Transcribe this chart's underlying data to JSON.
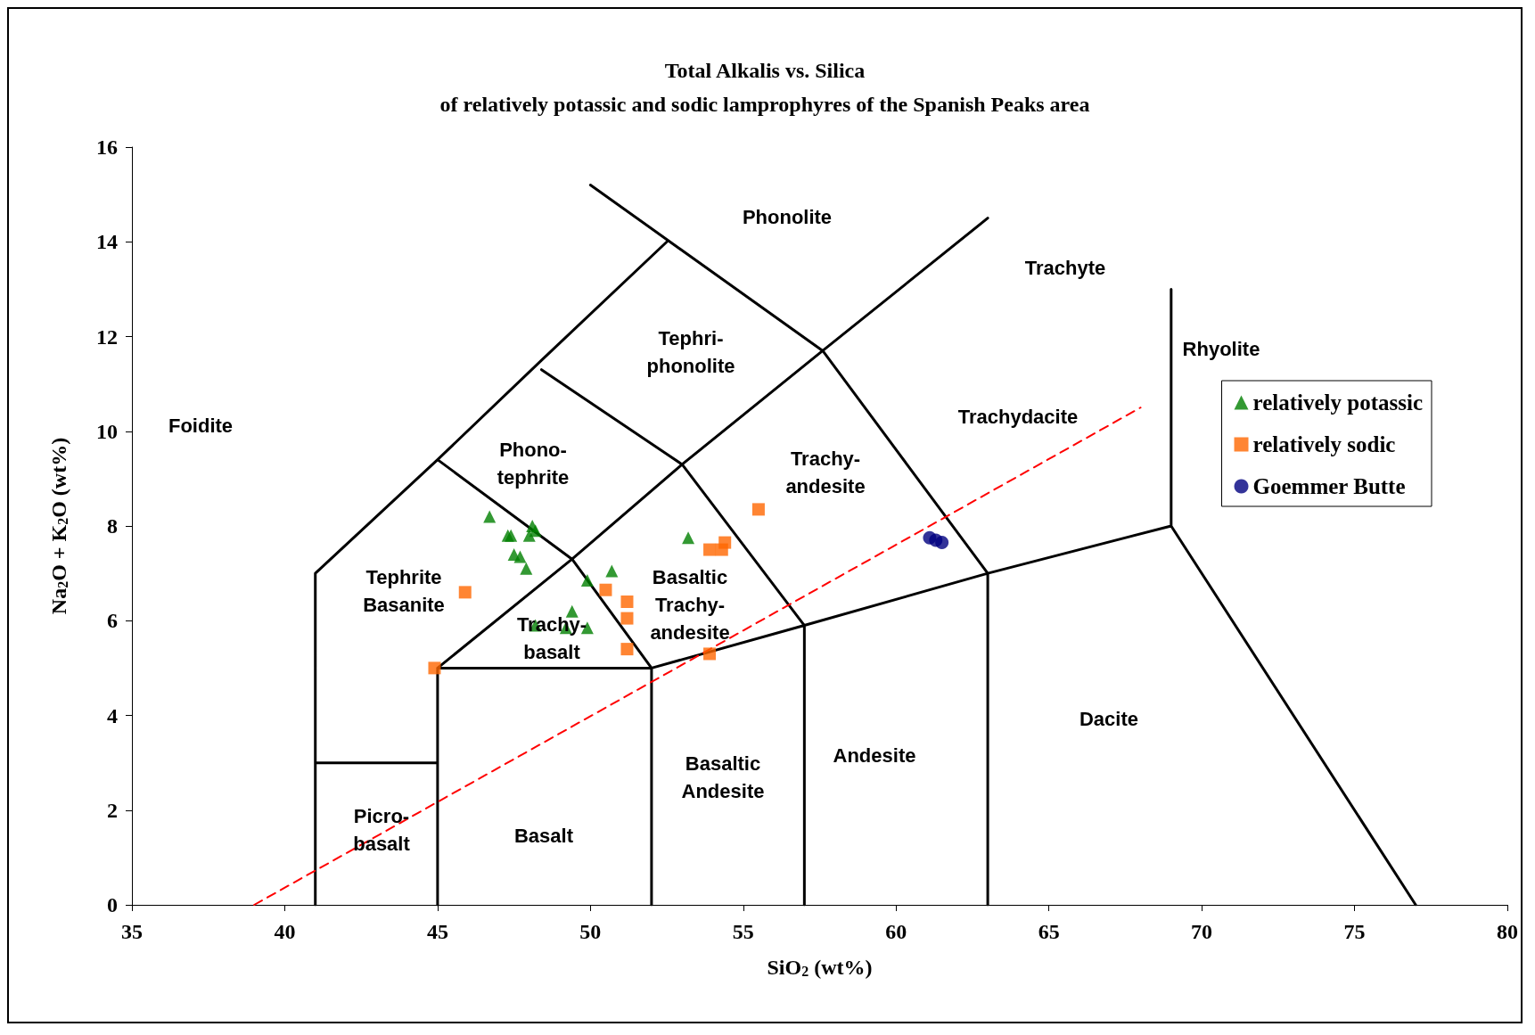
{
  "chart_data": {
    "type": "scatter",
    "title": "Total Alkalis vs. Silica",
    "subtitle": "of relatively potassic and sodic lamprophyres of the Spanish Peaks area",
    "xlabel": "SiO$_{2}$ (wt%)",
    "ylabel": "Na$_{2}$O + K$_{2}$O (wt%)",
    "xlim": [
      35,
      80
    ],
    "xticks": [
      35,
      40,
      45,
      50,
      55,
      60,
      65,
      70,
      75,
      80
    ],
    "ylim": [
      0,
      16
    ],
    "yticks": [
      0,
      2,
      4,
      6,
      8,
      10,
      12,
      14,
      16
    ],
    "grid": false,
    "legend": "right",
    "series": [
      {
        "type": "line",
        "color": "#000000",
        "marker": "none",
        "line_style": "solid",
        "x": [
          41,
          41,
          45,
          48.4,
          52.5,
          null,
          41,
          45,
          null,
          45,
          45,
          52,
          57,
          63,
          69,
          77,
          null,
          52,
          52,
          null,
          57,
          57,
          null,
          63,
          63,
          null,
          45,
          49.4,
          53,
          57.6,
          63,
          null,
          52,
          49.4,
          45,
          null,
          53,
          48.4,
          null,
          57,
          53,
          null,
          63,
          57.6,
          50,
          null,
          69,
          69
        ],
        "values": [
          0,
          7,
          9.4,
          11.5,
          14,
          null,
          3,
          3,
          null,
          0,
          5,
          5,
          5.9,
          7,
          8,
          0,
          null,
          0,
          5,
          null,
          0,
          5.9,
          null,
          0,
          7,
          null,
          5,
          7.3,
          9.3,
          11.7,
          14.5,
          null,
          5,
          7.3,
          9.4,
          null,
          9.3,
          11.3,
          null,
          5.9,
          9.3,
          null,
          7,
          11.7,
          15.2,
          null,
          8,
          13
        ]
      },
      {
        "type": "line",
        "color": "#ff0000",
        "marker": "none",
        "line_style": "dashed",
        "x": [
          39,
          68
        ],
        "values": [
          0,
          10.5
        ]
      },
      {
        "name": "relatively potassic",
        "color": "#008000",
        "marker": "triangle",
        "x": [
          46.7,
          47.3,
          47.4,
          48.0,
          48.1,
          48.2,
          47.5,
          47.7,
          47.9,
          48.2,
          49.2,
          49.4,
          49.9,
          49.9,
          50.7,
          53.2
        ],
        "values": [
          8.2,
          7.8,
          7.8,
          7.8,
          8.0,
          7.9,
          7.4,
          7.35,
          7.1,
          5.9,
          5.85,
          6.2,
          5.85,
          6.85,
          7.05,
          7.75
        ]
      },
      {
        "name": "relatively sodic",
        "color": "#ff6600",
        "marker": "square",
        "x": [
          45.9,
          44.9,
          50.5,
          51.2,
          51.2,
          51.2,
          53.9,
          53.9,
          54.3,
          54.4,
          55.5
        ],
        "values": [
          6.6,
          5.0,
          6.65,
          6.4,
          6.05,
          5.4,
          5.3,
          7.5,
          7.5,
          7.65,
          8.35
        ]
      },
      {
        "name": "Goemmer Butte",
        "color": "#000080",
        "marker": "circle",
        "x": [
          61.1,
          61.3,
          61.5
        ],
        "values": [
          7.75,
          7.7,
          7.65
        ]
      }
    ],
    "annotations": [
      "Foidite",
      "Phonolite",
      "Trachyte",
      "Rhyolite",
      "Tephri-\nphonolite",
      "Trachydacite",
      "Phono-\ntephrite",
      "Trachy-\nandesite",
      "Tephrite\nBasanite",
      "Basaltic\nTrachy-\nandesite",
      "Trachy-\nbasalt",
      "Dacite",
      "Andesite",
      "Basaltic\nAndesite",
      "Picro-\nbasalt",
      "Basalt"
    ]
  }
}
